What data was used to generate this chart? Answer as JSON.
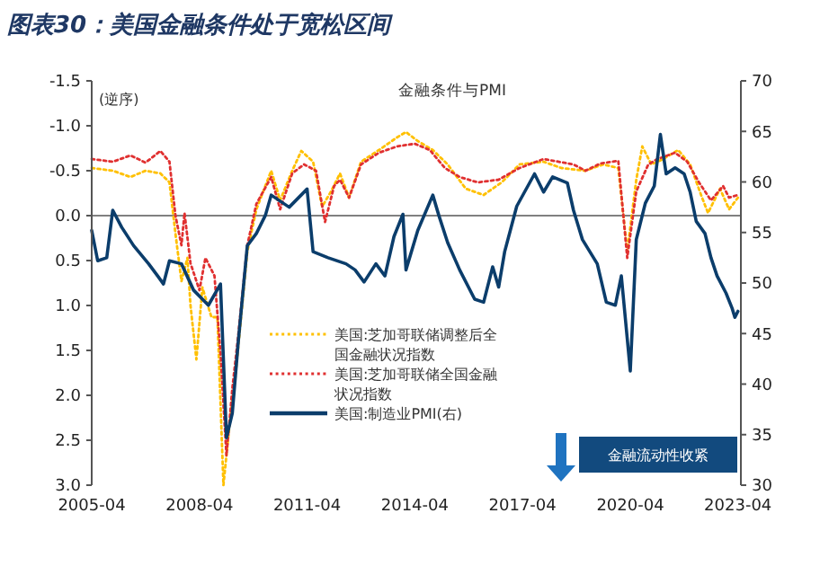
{
  "chart_data": {
    "type": "line",
    "title": "图表30：美国金融条件处于宽松区间",
    "annotations": [
      "(逆序)",
      "金融条件与PMI",
      "金融流动性收紧"
    ],
    "xlim": [
      "2005-04",
      "2023-05"
    ],
    "xticks": [
      {
        "value": "2005-04",
        "label": "2005-04"
      },
      {
        "value": "2008-04",
        "label": "2008-04"
      },
      {
        "value": "2011-04",
        "label": "2011-04"
      },
      {
        "value": "2014-04",
        "label": "2014-04"
      },
      {
        "value": "2017-04",
        "label": "2017-04"
      },
      {
        "value": "2020-04",
        "label": "2020-04"
      },
      {
        "value": "2023-04",
        "label": "2023-04"
      }
    ],
    "ylim": [
      3.0,
      -1.5
    ],
    "yticks": [
      {
        "value": -1.5,
        "label": "-1.5"
      },
      {
        "value": -1.0,
        "label": "-1.0"
      },
      {
        "value": -0.5,
        "label": "-0.5"
      },
      {
        "value": 0,
        "label": "0.0"
      },
      {
        "value": 0.5,
        "label": "0.5"
      },
      {
        "value": 1.0,
        "label": "1.0"
      },
      {
        "value": 1.5,
        "label": "1.5"
      },
      {
        "value": 2.0,
        "label": "2.0"
      },
      {
        "value": 2.5,
        "label": "2.5"
      },
      {
        "value": 3.0,
        "label": "3.0"
      }
    ],
    "y2lim": [
      30,
      70
    ],
    "y2ticks": [
      30,
      35,
      40,
      45,
      50,
      55,
      60,
      65,
      70
    ],
    "ref_lines": [
      {
        "axis": "y",
        "value": 0,
        "color": "#808080"
      }
    ],
    "grid": false,
    "legend": "bottom",
    "series": [
      {
        "name": "美国:芝加哥联储调整后全国金融状况指数",
        "color": "#ffc000",
        "line_style": "dotted",
        "x": [
          "2005-04",
          "2005-11",
          "2006-05",
          "2006-10",
          "2007-03",
          "2007-06",
          "2007-08",
          "2007-10",
          "2007-12",
          "2008-01",
          "2008-03",
          "2008-05",
          "2008-08",
          "2008-10",
          "2008-12",
          "2009-02",
          "2009-04",
          "2009-08",
          "2009-11",
          "2010-04",
          "2010-07",
          "2010-11",
          "2011-02",
          "2011-06",
          "2011-09",
          "2011-12",
          "2012-03",
          "2012-06",
          "2012-10",
          "2013-04",
          "2013-10",
          "2014-01",
          "2014-05",
          "2014-10",
          "2015-03",
          "2015-09",
          "2016-03",
          "2016-09",
          "2017-03",
          "2017-11",
          "2018-05",
          "2019-01",
          "2019-07",
          "2019-12",
          "2020-03",
          "2020-06",
          "2020-08",
          "2020-11",
          "2021-03",
          "2021-08",
          "2021-12",
          "2022-04",
          "2022-06",
          "2022-10",
          "2023-01",
          "2023-04"
        ],
        "values": [
          -0.53,
          -0.5,
          -0.43,
          -0.5,
          -0.47,
          -0.37,
          0.2,
          0.73,
          0.47,
          1.0,
          1.6,
          0.8,
          1.13,
          1.13,
          3.0,
          2.33,
          1.8,
          0.4,
          -0.07,
          -0.5,
          -0.17,
          -0.5,
          -0.72,
          -0.6,
          -0.1,
          -0.27,
          -0.47,
          -0.2,
          -0.6,
          -0.73,
          -0.87,
          -0.93,
          -0.83,
          -0.73,
          -0.57,
          -0.3,
          -0.23,
          -0.37,
          -0.57,
          -0.6,
          -0.53,
          -0.5,
          -0.57,
          -0.53,
          0.4,
          -0.4,
          -0.77,
          -0.57,
          -0.63,
          -0.73,
          -0.57,
          -0.2,
          -0.03,
          -0.3,
          -0.07,
          -0.2
        ]
      },
      {
        "name": "美国:芝加哥联储全国金融状况指数",
        "color": "#e03030",
        "line_style": "dotted",
        "x": [
          "2005-04",
          "2005-11",
          "2006-05",
          "2006-10",
          "2007-03",
          "2007-06",
          "2007-08",
          "2007-10",
          "2007-11",
          "2008-01",
          "2008-04",
          "2008-06",
          "2008-09",
          "2008-11",
          "2009-01",
          "2009-03",
          "2009-05",
          "2009-08",
          "2009-11",
          "2010-04",
          "2010-07",
          "2010-11",
          "2011-03",
          "2011-07",
          "2011-10",
          "2012-01",
          "2012-03",
          "2012-06",
          "2012-10",
          "2013-04",
          "2013-10",
          "2014-04",
          "2014-09",
          "2015-02",
          "2015-07",
          "2016-01",
          "2016-08",
          "2017-03",
          "2017-11",
          "2018-09",
          "2019-01",
          "2019-06",
          "2019-12",
          "2020-03",
          "2020-06",
          "2020-10",
          "2021-01",
          "2021-07",
          "2021-11",
          "2022-03",
          "2022-07",
          "2022-11",
          "2023-01",
          "2023-04"
        ],
        "values": [
          -0.63,
          -0.6,
          -0.67,
          -0.59,
          -0.72,
          -0.6,
          0,
          0.33,
          -0.03,
          0.53,
          0.83,
          0.47,
          0.67,
          1.53,
          2.67,
          1.93,
          1.33,
          0.33,
          -0.13,
          -0.43,
          -0.07,
          -0.47,
          -0.57,
          -0.5,
          0.07,
          -0.33,
          -0.4,
          -0.2,
          -0.57,
          -0.7,
          -0.77,
          -0.8,
          -0.73,
          -0.53,
          -0.43,
          -0.37,
          -0.4,
          -0.53,
          -0.63,
          -0.57,
          -0.5,
          -0.58,
          -0.61,
          0.47,
          -0.27,
          -0.57,
          -0.63,
          -0.7,
          -0.6,
          -0.37,
          -0.17,
          -0.33,
          -0.2,
          -0.23
        ]
      },
      {
        "name": "美国:制造业PMI(右)",
        "color": "#0b3d6b",
        "line_style": "solid",
        "axis": "y2",
        "x": [
          "2005-04",
          "2005-06",
          "2005-09",
          "2005-11",
          "2006-02",
          "2006-06",
          "2006-11",
          "2007-02",
          "2007-04",
          "2007-06",
          "2007-10",
          "2008-02",
          "2008-07",
          "2008-11",
          "2009-01",
          "2009-03",
          "2009-05",
          "2009-08",
          "2009-11",
          "2010-02",
          "2010-04",
          "2010-10",
          "2011-04",
          "2011-06",
          "2011-11",
          "2012-05",
          "2012-08",
          "2012-11",
          "2013-03",
          "2013-06",
          "2013-09",
          "2013-12",
          "2014-01",
          "2014-05",
          "2014-10",
          "2014-12",
          "2015-03",
          "2015-07",
          "2015-12",
          "2016-03",
          "2016-06",
          "2016-08",
          "2016-10",
          "2017-02",
          "2017-08",
          "2017-11",
          "2018-02",
          "2018-07",
          "2018-09",
          "2018-12",
          "2019-05",
          "2019-08",
          "2019-11",
          "2020-01",
          "2020-04",
          "2020-06",
          "2020-09",
          "2020-12",
          "2021-02",
          "2021-04",
          "2021-07",
          "2021-10",
          "2021-12",
          "2022-02",
          "2022-05",
          "2022-07",
          "2022-09",
          "2022-12",
          "2023-02",
          "2023-03",
          "2023-04"
        ],
        "values": [
          55.2,
          52.2,
          52.5,
          57.2,
          55.5,
          53.7,
          51.9,
          50.7,
          49.9,
          52.2,
          51.9,
          49.3,
          47.8,
          49.9,
          34.7,
          37.1,
          44.2,
          53.7,
          54.9,
          56.7,
          58.7,
          57.5,
          59.3,
          53.1,
          52.5,
          51.9,
          51.3,
          50.1,
          51.9,
          50.7,
          54.6,
          56.8,
          51.3,
          55.2,
          58.7,
          56.7,
          54.0,
          51.3,
          48.4,
          48.1,
          51.6,
          49.6,
          53.1,
          57.6,
          60.8,
          59.0,
          60.5,
          59.9,
          57.2,
          54.3,
          51.9,
          48.1,
          47.8,
          50.7,
          41.3,
          54.3,
          57.9,
          59.6,
          64.7,
          60.8,
          61.4,
          60.8,
          59.0,
          56.1,
          54.9,
          52.5,
          50.7,
          49.0,
          47.5,
          46.6,
          47.2
        ]
      }
    ]
  }
}
